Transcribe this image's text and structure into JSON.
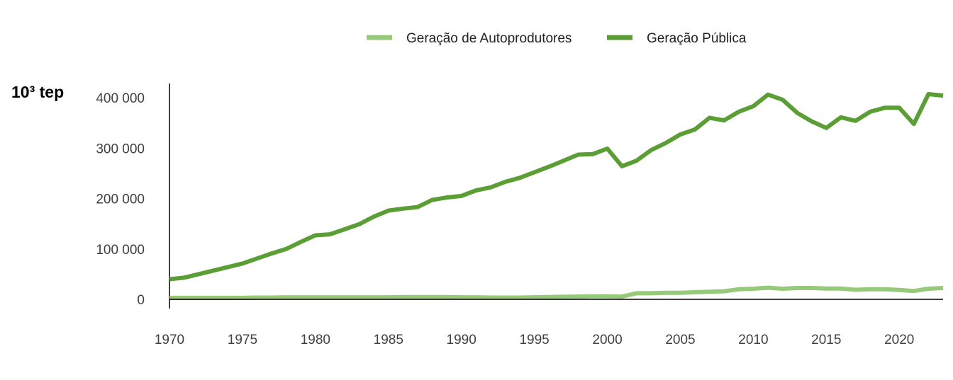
{
  "chart_data": {
    "type": "line",
    "unit_label": "10³ tep",
    "ylim": [
      0,
      400000
    ],
    "yticks": [
      0,
      100000,
      200000,
      300000,
      400000
    ],
    "ytick_labels": [
      "0",
      "100 000",
      "200 000",
      "300 000",
      "400 000"
    ],
    "xlim": [
      1970,
      2023
    ],
    "xticks": [
      1970,
      1975,
      1980,
      1985,
      1990,
      1995,
      2000,
      2005,
      2010,
      2015,
      2020
    ],
    "xtick_labels": [
      "1970",
      "1975",
      "1980",
      "1985",
      "1990",
      "1995",
      "2000",
      "2005",
      "2010",
      "2015",
      "2020"
    ],
    "grid": false,
    "legend_position": "top",
    "x": [
      1970,
      1971,
      1972,
      1973,
      1974,
      1975,
      1976,
      1977,
      1978,
      1979,
      1980,
      1981,
      1982,
      1983,
      1984,
      1985,
      1986,
      1987,
      1988,
      1989,
      1990,
      1991,
      1992,
      1993,
      1994,
      1995,
      1996,
      1997,
      1998,
      1999,
      2000,
      2001,
      2002,
      2003,
      2004,
      2005,
      2006,
      2007,
      2008,
      2009,
      2010,
      2011,
      2012,
      2013,
      2014,
      2015,
      2016,
      2017,
      2018,
      2019,
      2020,
      2021,
      2022,
      2023
    ],
    "series": [
      {
        "name": "Geração de Autoprodutores",
        "color": "#97c97b",
        "values": [
          3000,
          3000,
          3000,
          3000,
          3000,
          3000,
          3500,
          3500,
          4000,
          4000,
          4000,
          4000,
          4000,
          4000,
          4000,
          4000,
          4500,
          4500,
          4500,
          4500,
          4000,
          4000,
          3500,
          3500,
          3500,
          4000,
          4500,
          5000,
          5500,
          6000,
          6000,
          5500,
          12000,
          12000,
          13000,
          13000,
          14000,
          15000,
          16000,
          20000,
          21000,
          23000,
          21000,
          22500,
          22500,
          21500,
          21500,
          19000,
          20000,
          20000,
          18500,
          16500,
          21000,
          22500
        ]
      },
      {
        "name": "Geração Pública",
        "color": "#5b9e35",
        "values": [
          40000,
          43000,
          50000,
          57000,
          64000,
          71000,
          81000,
          91000,
          100000,
          114000,
          127000,
          129000,
          139000,
          149000,
          164000,
          176000,
          180000,
          183000,
          197000,
          202000,
          205000,
          216000,
          222000,
          233000,
          241000,
          252000,
          263000,
          275000,
          287000,
          288000,
          299000,
          264000,
          275000,
          296000,
          310000,
          327000,
          337000,
          360000,
          355000,
          372000,
          383000,
          406000,
          396000,
          370000,
          353000,
          340000,
          361000,
          354000,
          372000,
          380000,
          380000,
          348000,
          407000,
          404000
        ]
      }
    ]
  }
}
